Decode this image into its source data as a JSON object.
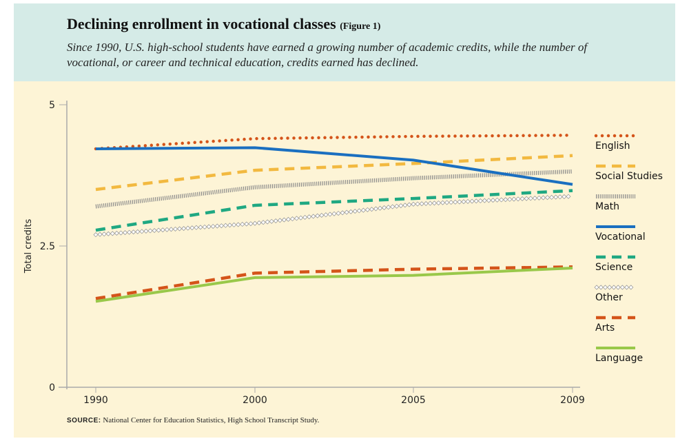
{
  "chart_data": {
    "type": "line",
    "title": "Declining enrollment in vocational classes",
    "title_note": "(Figure 1)",
    "subtitle": "Since 1990, U.S. high-school students have earned a growing number of academic credits, while the number of vocational, or career and technical education, credits earned has declined.",
    "xlabel": "",
    "ylabel": "Total credits",
    "x": [
      "1990",
      "2000",
      "2005",
      "2009"
    ],
    "ylim": [
      0,
      5
    ],
    "yticks": [
      "0",
      "2.5",
      "5"
    ],
    "legend_position": "right",
    "series": [
      {
        "name": "English",
        "style": "dotted",
        "color": "#d4541a",
        "values": [
          4.22,
          4.4,
          4.44,
          4.46
        ]
      },
      {
        "name": "Social Studies",
        "style": "dashed",
        "color": "#f2b940",
        "values": [
          3.5,
          3.84,
          3.96,
          4.1
        ]
      },
      {
        "name": "Math",
        "style": "hatched",
        "color": "#8a8a8a",
        "values": [
          3.2,
          3.54,
          3.7,
          3.82
        ]
      },
      {
        "name": "Vocational",
        "style": "solid",
        "color": "#1a6fc0",
        "values": [
          4.22,
          4.24,
          4.02,
          3.59
        ]
      },
      {
        "name": "Science",
        "style": "dashed",
        "color": "#1fa882",
        "values": [
          2.78,
          3.22,
          3.34,
          3.48
        ]
      },
      {
        "name": "Other",
        "style": "diamonds",
        "color": "#999999",
        "values": [
          2.7,
          2.9,
          3.24,
          3.38
        ]
      },
      {
        "name": "Arts",
        "style": "dashed",
        "color": "#d4541a",
        "values": [
          1.57,
          2.02,
          2.09,
          2.13
        ]
      },
      {
        "name": "Language",
        "style": "solid",
        "color": "#99c84a",
        "values": [
          1.52,
          1.94,
          1.98,
          2.11
        ]
      }
    ],
    "source_label": "SOURCE:",
    "source": "National Center for Education Statistics, High School Transcript Study."
  }
}
